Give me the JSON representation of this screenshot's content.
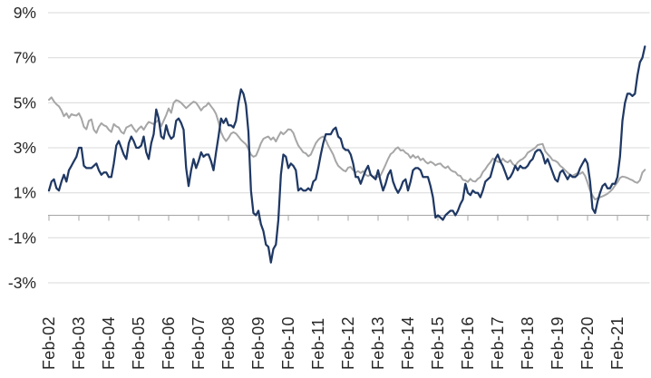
{
  "chart_data": {
    "type": "line",
    "x_start": "Feb-2002",
    "frequency": "monthly",
    "x_tick_labels": [
      "Feb-02",
      "Feb-03",
      "Feb-04",
      "Feb-05",
      "Feb-06",
      "Feb-07",
      "Feb-08",
      "Feb-09",
      "Feb-10",
      "Feb-11",
      "Feb-12",
      "Feb-13",
      "Feb-14",
      "Feb-15",
      "Feb-16",
      "Feb-17",
      "Feb-18",
      "Feb-19",
      "Feb-20",
      "Feb-21"
    ],
    "y_tick_labels": [
      "9%",
      "7%",
      "5%",
      "3%",
      "1%",
      "-1%",
      "-3%"
    ],
    "y_tick_values": [
      9,
      7,
      5,
      3,
      1,
      -1,
      -3
    ],
    "ylim": [
      -3,
      9
    ],
    "grid": "horizontal",
    "legend": "none",
    "series": [
      {
        "name": "gray-line",
        "color": "#A6A6A6",
        "values": [
          5.13,
          5.24,
          5.06,
          4.93,
          4.84,
          4.66,
          4.4,
          4.53,
          4.33,
          4.49,
          4.45,
          4.43,
          4.53,
          4.3,
          3.93,
          3.82,
          4.2,
          4.26,
          3.8,
          3.66,
          3.93,
          4.09,
          4.0,
          3.95,
          3.8,
          3.7,
          4.05,
          3.95,
          3.9,
          3.7,
          3.63,
          3.9,
          3.95,
          4.02,
          3.85,
          3.7,
          3.85,
          3.95,
          3.8,
          4.0,
          4.15,
          4.1,
          4.05,
          4.15,
          4.25,
          3.95,
          4.2,
          4.45,
          4.75,
          4.55,
          5.0,
          5.12,
          5.08,
          5.0,
          4.88,
          4.76,
          4.86,
          4.96,
          5.05,
          5.0,
          4.84,
          4.66,
          4.8,
          4.86,
          5.0,
          4.84,
          4.7,
          4.5,
          4.15,
          3.7,
          3.45,
          3.3,
          3.43,
          3.63,
          3.69,
          3.63,
          3.5,
          3.35,
          3.25,
          3.15,
          2.95,
          2.7,
          2.6,
          2.65,
          2.9,
          3.2,
          3.4,
          3.46,
          3.5,
          3.36,
          3.46,
          3.28,
          3.5,
          3.7,
          3.6,
          3.7,
          3.82,
          3.8,
          3.66,
          3.35,
          3.1,
          2.95,
          2.8,
          2.75,
          2.62,
          2.7,
          2.95,
          3.2,
          3.35,
          3.45,
          3.5,
          3.35,
          3.1,
          2.9,
          2.7,
          2.4,
          2.2,
          2.1,
          2.0,
          1.95,
          2.12,
          2.15,
          2.0,
          1.9,
          1.96,
          1.88,
          1.96,
          1.8,
          1.74,
          1.82,
          1.7,
          1.75,
          1.7,
          1.78,
          2.0,
          2.25,
          2.5,
          2.72,
          2.8,
          2.95,
          3.02,
          2.88,
          2.9,
          2.78,
          2.72,
          2.55,
          2.68,
          2.55,
          2.62,
          2.45,
          2.52,
          2.38,
          2.3,
          2.38,
          2.32,
          2.22,
          2.28,
          2.3,
          2.18,
          2.1,
          2.18,
          2.02,
          1.95,
          1.92,
          1.78,
          1.75,
          1.58,
          1.55,
          1.48,
          1.62,
          1.52,
          1.5,
          1.62,
          1.7,
          1.92,
          2.05,
          2.22,
          2.35,
          2.52,
          2.45,
          2.38,
          2.35,
          2.52,
          2.4,
          2.35,
          2.45,
          2.28,
          2.2,
          2.35,
          2.45,
          2.5,
          2.6,
          2.78,
          2.85,
          2.92,
          3.0,
          3.12,
          3.15,
          3.17,
          2.85,
          2.72,
          2.6,
          2.45,
          2.42,
          2.35,
          2.2,
          2.12,
          2.0,
          1.9,
          1.8,
          1.75,
          1.82,
          1.87,
          1.84,
          1.92,
          1.75,
          1.45,
          1.1,
          0.88,
          0.7,
          0.76,
          0.8,
          0.84,
          0.9,
          0.96,
          1.05,
          1.16,
          1.32,
          1.46,
          1.66,
          1.72,
          1.7,
          1.66,
          1.6,
          1.56,
          1.48,
          1.44,
          1.56,
          1.9,
          2.02
        ]
      },
      {
        "name": "dark-navy-line",
        "color": "#1F3864",
        "values": [
          1.1,
          1.5,
          1.6,
          1.2,
          1.1,
          1.5,
          1.8,
          1.5,
          2.0,
          2.2,
          2.4,
          2.6,
          3.0,
          3.0,
          2.2,
          2.1,
          2.1,
          2.1,
          2.2,
          2.3,
          2.0,
          1.8,
          1.9,
          1.9,
          1.7,
          1.7,
          2.3,
          3.1,
          3.3,
          3.0,
          2.7,
          2.5,
          3.2,
          3.5,
          3.3,
          3.0,
          3.0,
          3.1,
          3.5,
          2.8,
          2.5,
          3.2,
          3.6,
          4.7,
          4.3,
          3.5,
          3.4,
          4.0,
          3.6,
          3.4,
          3.5,
          4.2,
          4.3,
          4.1,
          3.8,
          2.1,
          1.3,
          2.0,
          2.5,
          2.1,
          2.4,
          2.8,
          2.6,
          2.7,
          2.7,
          2.4,
          2.0,
          2.8,
          3.5,
          4.3,
          4.1,
          4.3,
          4.0,
          4.0,
          3.9,
          4.2,
          5.0,
          5.6,
          5.4,
          4.9,
          3.7,
          1.1,
          0.1,
          0.0,
          0.2,
          -0.4,
          -0.7,
          -1.3,
          -1.4,
          -2.1,
          -1.5,
          -1.3,
          -0.2,
          1.8,
          2.7,
          2.6,
          2.1,
          2.3,
          2.2,
          2.0,
          1.1,
          1.2,
          1.1,
          1.1,
          1.2,
          1.1,
          1.5,
          1.6,
          2.1,
          2.7,
          3.2,
          3.6,
          3.6,
          3.6,
          3.8,
          3.9,
          3.5,
          3.4,
          3.0,
          2.9,
          2.9,
          2.7,
          2.3,
          1.7,
          1.7,
          1.4,
          1.7,
          2.0,
          2.2,
          1.8,
          1.7,
          1.6,
          2.0,
          1.5,
          1.1,
          1.4,
          1.8,
          2.0,
          1.5,
          1.2,
          1.0,
          1.2,
          1.5,
          1.6,
          1.1,
          1.5,
          2.0,
          2.1,
          2.1,
          2.0,
          1.7,
          1.7,
          1.7,
          1.3,
          0.8,
          -0.1,
          0.0,
          -0.1,
          -0.2,
          0.0,
          0.1,
          0.2,
          0.2,
          0.0,
          0.2,
          0.5,
          0.7,
          1.4,
          1.0,
          0.9,
          1.1,
          1.0,
          1.0,
          0.8,
          1.1,
          1.5,
          1.6,
          1.7,
          2.1,
          2.5,
          2.7,
          2.4,
          2.2,
          1.9,
          1.6,
          1.7,
          1.9,
          2.2,
          2.0,
          2.2,
          2.1,
          2.1,
          2.2,
          2.4,
          2.5,
          2.8,
          2.9,
          2.9,
          2.7,
          2.3,
          2.5,
          2.2,
          1.9,
          1.6,
          1.5,
          1.9,
          2.0,
          1.8,
          1.6,
          1.8,
          1.7,
          1.7,
          1.8,
          2.1,
          2.3,
          2.5,
          2.3,
          1.5,
          0.3,
          0.1,
          0.6,
          1.0,
          1.3,
          1.4,
          1.2,
          1.2,
          1.4,
          1.4,
          1.7,
          2.6,
          4.2,
          5.0,
          5.4,
          5.4,
          5.3,
          5.4,
          6.2,
          6.8,
          7.0,
          7.5
        ]
      }
    ]
  },
  "colors": {
    "gridline": "#D9D9D9",
    "axis": "#A6A6A6",
    "tick_label": "#262626"
  }
}
